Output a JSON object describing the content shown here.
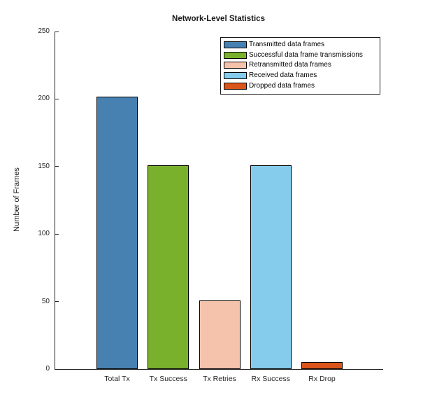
{
  "figure": {
    "background": "#ffffff",
    "axis_color": "#262626"
  },
  "chart_data": {
    "type": "bar",
    "title": "Network-Level Statistics",
    "xlabel": "",
    "ylabel": "Number of Frames",
    "categories": [
      "Total Tx",
      "Tx Success",
      "Tx Retries",
      "Rx Success",
      "Rx Drop"
    ],
    "values": [
      202,
      151,
      51,
      151,
      5
    ],
    "bar_colors": [
      "#4781B1",
      "#79B12C",
      "#F5C3AC",
      "#85CBEB",
      "#DB551A"
    ],
    "bar_edge_color": "#000000",
    "ylim": [
      0,
      250
    ],
    "yticks": [
      0,
      50,
      100,
      150,
      200,
      250
    ],
    "grid": false,
    "legend": {
      "position": "upper-right",
      "entries": [
        {
          "label": "Transmitted data frames",
          "color": "#4781B1"
        },
        {
          "label": "Successful data frame transmissions",
          "color": "#79B12C"
        },
        {
          "label": "Retransmitted data frames",
          "color": "#F5C3AC"
        },
        {
          "label": "Received data frames",
          "color": "#85CBEB"
        },
        {
          "label": "Dropped data frames",
          "color": "#DB551A"
        }
      ]
    }
  }
}
